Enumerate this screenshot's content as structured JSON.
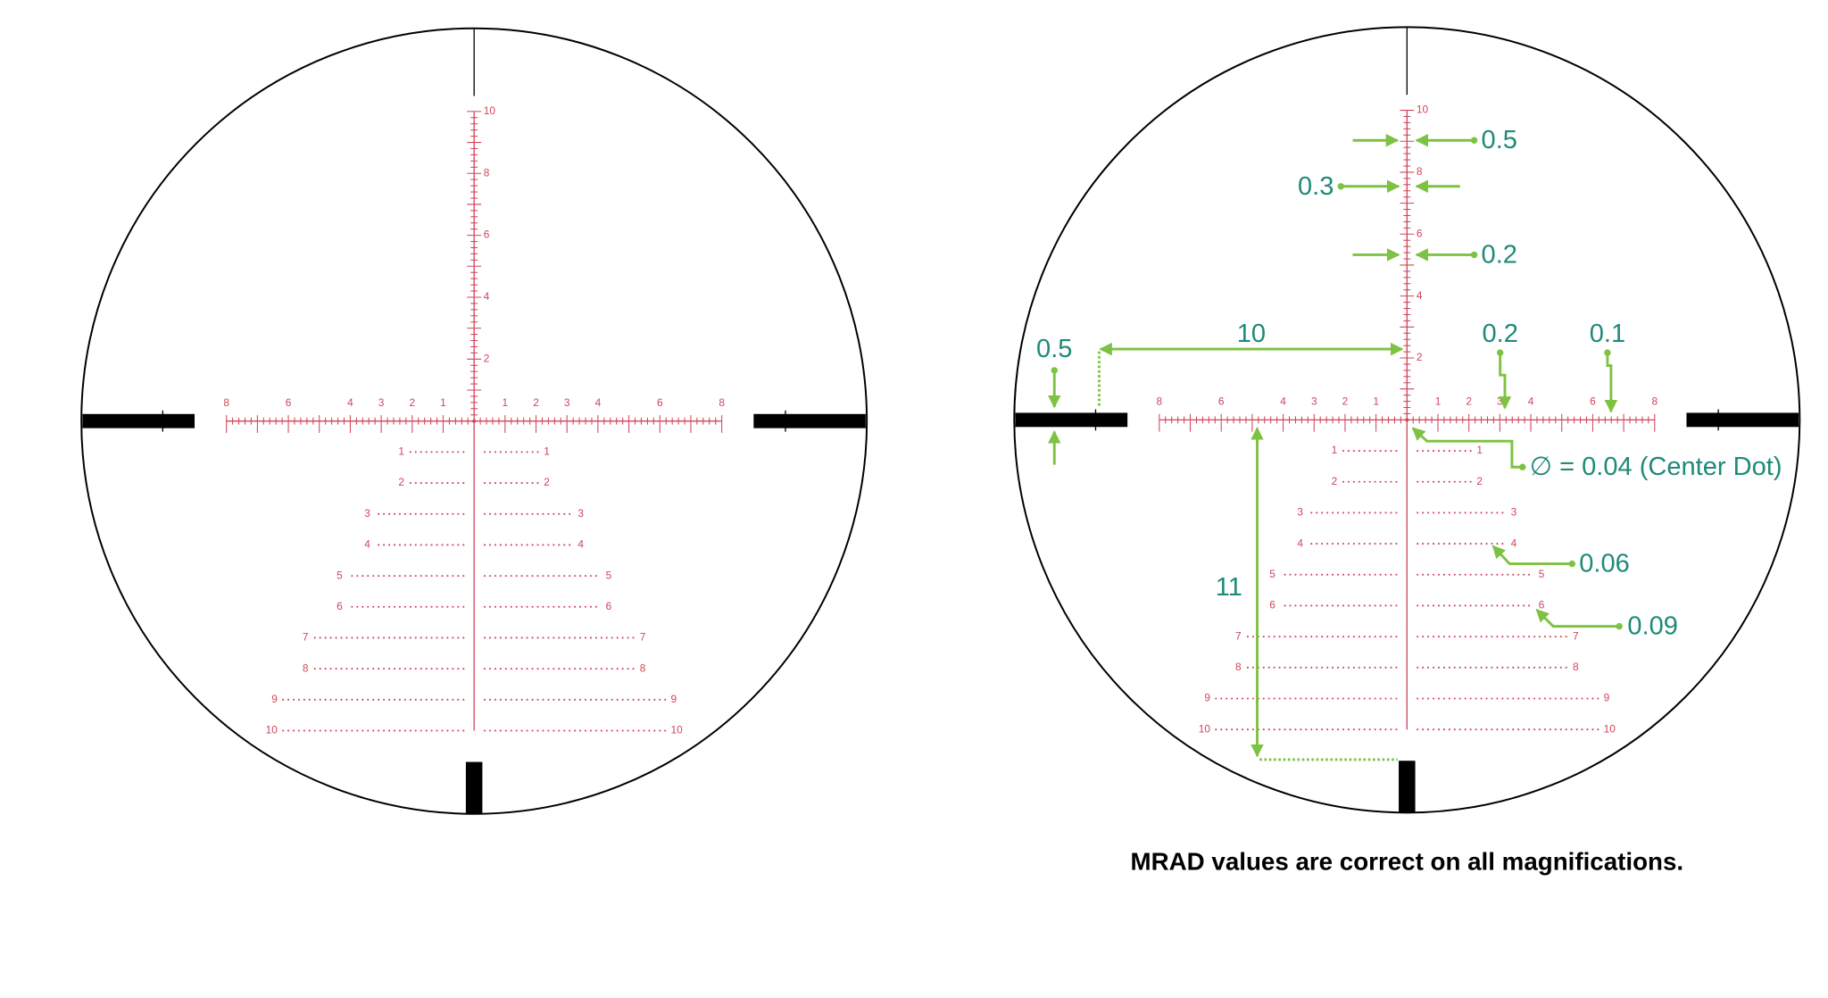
{
  "reticles": [
    {
      "vertical_labels": [
        2,
        4,
        6,
        8,
        10
      ],
      "horizontal_labels": [
        1,
        2,
        3,
        4,
        6,
        8
      ],
      "holdover_labels": [
        1,
        2,
        3,
        4,
        5,
        6,
        7,
        8,
        9,
        10
      ]
    },
    {
      "vertical_labels": [
        2,
        4,
        6,
        8,
        10
      ],
      "horizontal_labels": [
        1,
        2,
        3,
        4,
        6,
        8
      ],
      "holdover_labels": [
        1,
        2,
        3,
        4,
        5,
        6,
        7,
        8,
        9,
        10
      ]
    }
  ],
  "annotations": {
    "top_width": "0.5",
    "mid_width": "0.3",
    "low_width": "0.2",
    "horizontal_span": "10",
    "bar_thickness": "0.5",
    "line_width": "0.2",
    "hash_width": "0.1",
    "center_dot": "∅ = 0.04 (Center Dot)",
    "holdover_dot": "0.06",
    "holdover_end_dot": "0.09",
    "vertical_span": "11"
  },
  "caption": "MRAD values are correct on all magnifications."
}
